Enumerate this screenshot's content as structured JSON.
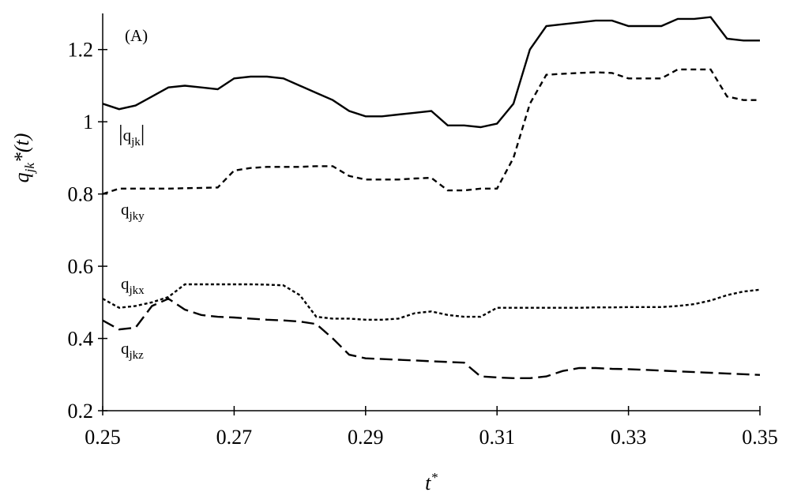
{
  "chart_data": {
    "type": "line",
    "annotation": "(A)",
    "xlabel": {
      "base": "t",
      "sup": "*"
    },
    "ylabel": {
      "base": "q",
      "sub": "jk",
      "rest": "*(t)"
    },
    "xlim": [
      0.25,
      0.35
    ],
    "xticks": [
      0.25,
      0.27,
      0.29,
      0.31,
      0.33,
      0.35
    ],
    "ylim": [
      0.2,
      1.3
    ],
    "yticks": [
      0.2,
      0.4,
      0.6,
      0.8,
      1,
      1.2
    ],
    "x": [
      0.25,
      0.2525,
      0.255,
      0.2575,
      0.26,
      0.2625,
      0.265,
      0.2675,
      0.27,
      0.2725,
      0.275,
      0.2775,
      0.28,
      0.2825,
      0.285,
      0.2875,
      0.29,
      0.2925,
      0.295,
      0.2975,
      0.3,
      0.3025,
      0.305,
      0.3075,
      0.31,
      0.3125,
      0.315,
      0.3175,
      0.32,
      0.3225,
      0.325,
      0.3275,
      0.33,
      0.3325,
      0.335,
      0.3375,
      0.34,
      0.3425,
      0.345,
      0.3475,
      0.35
    ],
    "series": [
      {
        "name": {
          "prefix": "|",
          "base": "q",
          "sub": "jk",
          "suffix": "|"
        },
        "color": "#000000",
        "style": "solid",
        "values": [
          1.05,
          1.035,
          1.045,
          1.07,
          1.095,
          1.1,
          1.095,
          1.09,
          1.12,
          1.125,
          1.125,
          1.12,
          1.1,
          1.08,
          1.06,
          1.03,
          1.015,
          1.015,
          1.02,
          1.025,
          1.03,
          0.99,
          0.99,
          0.985,
          0.995,
          1.05,
          1.2,
          1.265,
          1.27,
          1.275,
          1.28,
          1.28,
          1.265,
          1.265,
          1.265,
          1.285,
          1.285,
          1.29,
          1.23,
          1.225,
          1.225
        ]
      },
      {
        "name": {
          "base": "q",
          "sub": "jky"
        },
        "color": "#000000",
        "style": "dashed",
        "values": [
          0.8,
          0.815,
          0.815,
          0.815,
          0.815,
          0.816,
          0.817,
          0.818,
          0.865,
          0.872,
          0.875,
          0.875,
          0.875,
          0.877,
          0.877,
          0.85,
          0.84,
          0.84,
          0.84,
          0.843,
          0.845,
          0.81,
          0.81,
          0.815,
          0.815,
          0.9,
          1.05,
          1.13,
          1.133,
          1.135,
          1.137,
          1.135,
          1.12,
          1.12,
          1.12,
          1.145,
          1.145,
          1.145,
          1.07,
          1.06,
          1.06
        ]
      },
      {
        "name": {
          "base": "q",
          "sub": "jkx"
        },
        "color": "#000000",
        "style": "dotted",
        "values": [
          0.51,
          0.485,
          0.49,
          0.5,
          0.515,
          0.55,
          0.55,
          0.55,
          0.55,
          0.55,
          0.549,
          0.547,
          0.52,
          0.46,
          0.455,
          0.455,
          0.452,
          0.452,
          0.455,
          0.47,
          0.475,
          0.465,
          0.46,
          0.46,
          0.485,
          0.485,
          0.485,
          0.485,
          0.485,
          0.485,
          0.486,
          0.486,
          0.487,
          0.487,
          0.487,
          0.49,
          0.495,
          0.505,
          0.52,
          0.53,
          0.535
        ]
      },
      {
        "name": {
          "base": "q",
          "sub": "jkz"
        },
        "color": "#000000",
        "style": "long-dash",
        "values": [
          0.45,
          0.425,
          0.43,
          0.49,
          0.51,
          0.48,
          0.465,
          0.46,
          0.458,
          0.455,
          0.452,
          0.45,
          0.447,
          0.44,
          0.4,
          0.355,
          0.345,
          0.343,
          0.341,
          0.339,
          0.337,
          0.335,
          0.333,
          0.295,
          0.292,
          0.29,
          0.29,
          0.295,
          0.31,
          0.318,
          0.318,
          0.316,
          0.315,
          0.313,
          0.311,
          0.309,
          0.307,
          0.305,
          0.303,
          0.301,
          0.299
        ]
      }
    ]
  }
}
